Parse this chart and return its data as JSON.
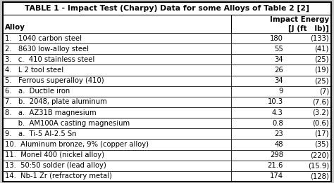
{
  "title": "TABLE 1 - Impact Test (Charpy) Data for some Alloys of Table 2 [2]",
  "col_header_left": "Alloy",
  "col_header_right_line1": "Impact Energy",
  "col_header_right_line2": "[J (ft   lb)]",
  "rows": [
    {
      "label": "1.   1040 carbon steel",
      "val": "180",
      "unit": "(133)"
    },
    {
      "label": "2.   8630 low-alloy steel",
      "val": "55",
      "unit": "(41)"
    },
    {
      "label": "3.   c.  410 stainless steel",
      "val": "34",
      "unit": "(25)"
    },
    {
      "label": "4.   L 2 tool steel",
      "val": "26",
      "unit": "(19)"
    },
    {
      "label": "5.   Ferrous superalloy (410)",
      "val": "34",
      "unit": "(25)"
    },
    {
      "label": "6.   a.  Ductile iron",
      "val": "9",
      "unit": "(7)"
    },
    {
      "label": "7.   b.  2048, plate aluminum",
      "val": "10.3",
      "unit": "(7.6)"
    },
    {
      "label": "8.   a.  AZ31B magnesium",
      "val": "4.3",
      "unit": "(3.2)"
    },
    {
      "label": "      b.  AM100A casting magnesium",
      "val": "0.8",
      "unit": "(0.6)"
    },
    {
      "label": "9.   a.  Ti-5 Al-2.5 Sn",
      "val": "23",
      "unit": "(17)"
    },
    {
      "label": "10.  Aluminum bronze, 9% (copper alloy)",
      "val": "48",
      "unit": "(35)"
    },
    {
      "label": "11.  Monel 400 (nickel alloy)",
      "val": "298",
      "unit": "(220)"
    },
    {
      "label": "13.  50:50 solder (lead alloy)",
      "val": "21.6",
      "unit": "(15.9)"
    },
    {
      "label": "14.  Nb-1 Zr (refractory metal)",
      "val": "174",
      "unit": "(128)"
    }
  ],
  "bg_color": "#c8c8c8",
  "row_bg": "#ffffff",
  "title_bg": "#ffffff",
  "header_bg": "#ffffff",
  "border_color": "#000000",
  "text_color": "#000000",
  "font_size": 7.2,
  "title_font_size": 7.8,
  "header_font_size": 7.4
}
